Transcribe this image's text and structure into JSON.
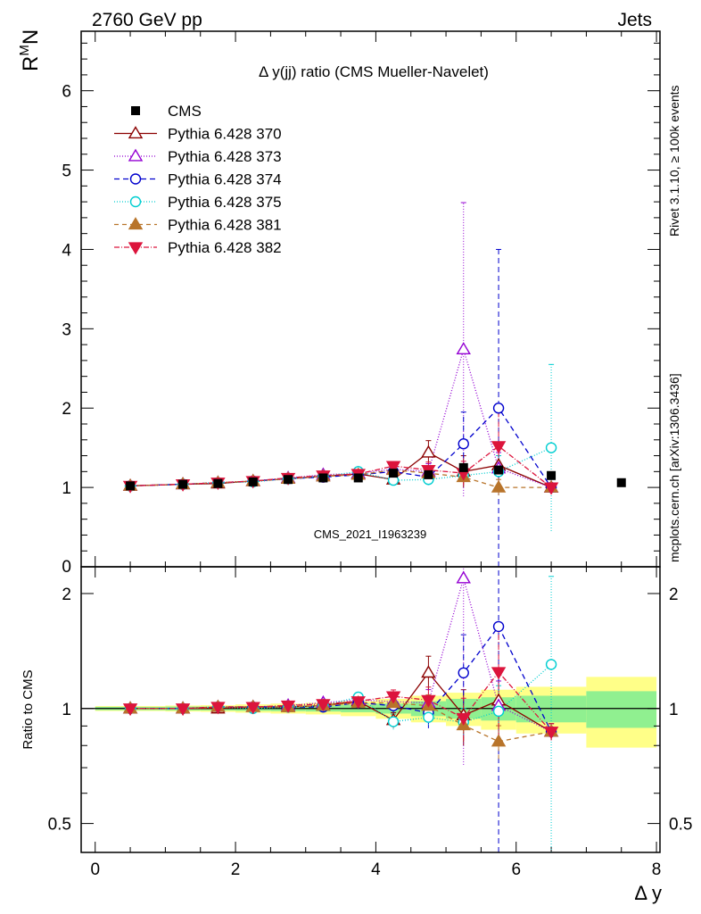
{
  "header": {
    "left": "2760 GeV pp",
    "right": "Jets"
  },
  "side_labels": {
    "top": "Rivet 3.1.10, ≥ 100k events",
    "bottom": "mcplots.cern.ch [arXiv:1306.3436]"
  },
  "watermark": "CMS_2021_I1963239",
  "chart_data": {
    "type": "scatter",
    "title": "Δ y(jj) ratio (CMS Mueller-Navelet)",
    "xlabel": "Δ y",
    "ylabel_top": "R^M_N",
    "ylabel_bottom": "Ratio to CMS",
    "xlim": [
      -0.2,
      8.05
    ],
    "ylim_top": [
      0,
      6.75
    ],
    "ylim_bottom": [
      0.42,
      2.35
    ],
    "xticks": [
      "0",
      "2",
      "4",
      "6",
      "8"
    ],
    "yticks_top": [
      "1",
      "2",
      "3",
      "4",
      "5",
      "6",
      "0"
    ],
    "yticks_bottom": [
      "0.5",
      "1",
      "2"
    ],
    "legend_position": "top-left",
    "data": {
      "name": "CMS",
      "x": [
        0.5,
        1.25,
        1.75,
        2.25,
        2.75,
        3.25,
        3.75,
        4.25,
        4.75,
        5.25,
        5.75,
        6.5,
        7.5
      ],
      "y": [
        1.02,
        1.04,
        1.05,
        1.07,
        1.1,
        1.12,
        1.12,
        1.18,
        1.16,
        1.25,
        1.22,
        1.15,
        1.06
      ]
    },
    "bands": {
      "x_edges": [
        0.0,
        1.0,
        1.5,
        2.0,
        2.5,
        3.0,
        3.5,
        4.0,
        4.5,
        5.0,
        5.5,
        6.0,
        7.0,
        8.0
      ],
      "inner": [
        0.01,
        0.012,
        0.012,
        0.014,
        0.016,
        0.018,
        0.022,
        0.03,
        0.045,
        0.06,
        0.07,
        0.08,
        0.11
      ],
      "outer": [
        0.015,
        0.018,
        0.02,
        0.025,
        0.03,
        0.035,
        0.045,
        0.06,
        0.08,
        0.1,
        0.12,
        0.14,
        0.21
      ]
    },
    "series": [
      {
        "name": "Pythia 6.428 370",
        "color": "#8b0000",
        "marker": "triangle-open",
        "dash": "",
        "x": [
          0.5,
          1.25,
          1.75,
          2.25,
          2.75,
          3.25,
          3.75,
          4.25,
          4.75,
          5.25,
          5.75,
          6.5
        ],
        "y": [
          1.02,
          1.04,
          1.05,
          1.08,
          1.11,
          1.14,
          1.17,
          1.1,
          1.44,
          1.2,
          1.28,
          1.0
        ],
        "err": [
          0.01,
          0.01,
          0.01,
          0.01,
          0.01,
          0.015,
          0.02,
          0.05,
          0.15,
          0.2,
          0.25,
          0.05
        ]
      },
      {
        "name": "Pythia 6.428 373",
        "color": "#9400d3",
        "marker": "triangle-open",
        "dash": "1,2",
        "x": [
          0.5,
          1.25,
          1.75,
          2.25,
          2.75,
          3.25,
          3.75,
          4.25,
          4.75,
          5.25,
          5.75,
          6.5
        ],
        "y": [
          1.02,
          1.04,
          1.06,
          1.08,
          1.12,
          1.16,
          1.18,
          1.23,
          1.2,
          2.74,
          1.24,
          1.0
        ],
        "err": [
          0.01,
          0.01,
          0.01,
          0.01,
          0.01,
          0.015,
          0.02,
          0.05,
          0.1,
          1.85,
          0.2,
          0.05
        ]
      },
      {
        "name": "Pythia 6.428 374",
        "color": "#0000cd",
        "marker": "circle-open",
        "dash": "6,4",
        "x": [
          0.5,
          1.25,
          1.75,
          2.25,
          2.75,
          3.25,
          3.75,
          4.25,
          4.75,
          5.25,
          5.75,
          6.5
        ],
        "y": [
          1.02,
          1.04,
          1.06,
          1.08,
          1.11,
          1.13,
          1.16,
          1.2,
          1.13,
          1.55,
          2.0,
          1.0
        ],
        "err": [
          0.01,
          0.01,
          0.01,
          0.01,
          0.01,
          0.015,
          0.02,
          0.05,
          0.1,
          0.4,
          2.0,
          0.05
        ]
      },
      {
        "name": "Pythia 6.428 375",
        "color": "#00ced1",
        "marker": "circle-open",
        "dash": "1,2",
        "x": [
          0.5,
          1.25,
          1.75,
          2.25,
          2.75,
          3.25,
          3.75,
          4.25,
          4.75,
          5.25,
          5.75,
          6.5
        ],
        "y": [
          1.02,
          1.04,
          1.06,
          1.07,
          1.11,
          1.14,
          1.2,
          1.09,
          1.1,
          1.15,
          1.2,
          1.5
        ],
        "err": [
          0.01,
          0.01,
          0.01,
          0.01,
          0.01,
          0.015,
          0.02,
          0.05,
          0.05,
          0.1,
          0.2,
          1.05
        ]
      },
      {
        "name": "Pythia 6.428 381",
        "color": "#b8742a",
        "marker": "triangle-filled",
        "dash": "5,4",
        "x": [
          0.5,
          1.25,
          1.75,
          2.25,
          2.75,
          3.25,
          3.75,
          4.25,
          4.75,
          5.25,
          5.75,
          6.5
        ],
        "y": [
          1.02,
          1.04,
          1.06,
          1.08,
          1.11,
          1.14,
          1.16,
          1.22,
          1.18,
          1.13,
          1.0,
          1.0
        ],
        "err": [
          0.01,
          0.01,
          0.01,
          0.01,
          0.01,
          0.015,
          0.02,
          0.05,
          0.08,
          0.1,
          0.1,
          0.05
        ]
      },
      {
        "name": "Pythia 6.428 382",
        "color": "#dc143c",
        "marker": "triangle-down-filled",
        "dash": "6,2,1,2",
        "x": [
          0.5,
          1.25,
          1.75,
          2.25,
          2.75,
          3.25,
          3.75,
          4.25,
          4.75,
          5.25,
          5.75,
          6.5
        ],
        "y": [
          1.02,
          1.04,
          1.06,
          1.08,
          1.12,
          1.15,
          1.17,
          1.27,
          1.22,
          1.18,
          1.52,
          1.0
        ],
        "err": [
          0.01,
          0.01,
          0.01,
          0.01,
          0.01,
          0.015,
          0.02,
          0.05,
          0.1,
          0.15,
          0.5,
          0.05
        ]
      }
    ]
  }
}
